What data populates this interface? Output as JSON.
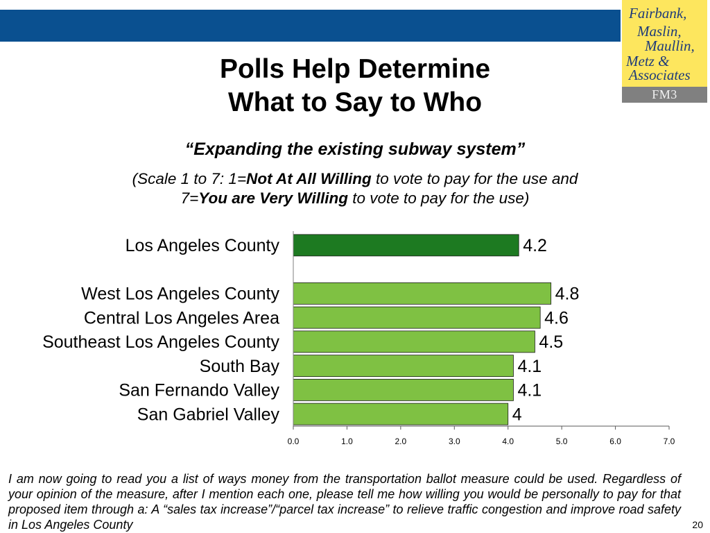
{
  "header": {
    "band_color": "#0A5090"
  },
  "logo": {
    "lines": [
      "Fairbank,",
      "Maslin,",
      "Maullin,",
      "Metz &",
      "Associates"
    ],
    "abbr": "FM3",
    "bg_color": "#FDE65E",
    "abbr_bg_color": "#808080",
    "text_color": "#1F3B7A"
  },
  "title": {
    "line1": "Polls Help Determine",
    "line2": "What to Say to Who"
  },
  "subtitle": "“Expanding the existing subway system”",
  "scale_note": {
    "line1_pre": "(Scale 1 to 7: 1=",
    "line1_bold": "Not At All Willing",
    "line1_post": " to vote to pay for the use and",
    "line2_pre": "7=",
    "line2_bold": "You are Very Willing",
    "line2_post": " to vote to pay for the use)"
  },
  "chart_data": {
    "type": "bar",
    "orientation": "horizontal",
    "categories": [
      "Los Angeles County",
      "West Los Angeles County",
      "Central Los Angeles Area",
      "Southeast Los Angeles County",
      "South Bay",
      "San Fernando Valley",
      "San Gabriel Valley"
    ],
    "values": [
      4.2,
      4.8,
      4.6,
      4.5,
      4.1,
      4.1,
      4.0
    ],
    "data_labels": [
      "4.2",
      "4.8",
      "4.6",
      "4.5",
      "4.1",
      "4.1",
      "4"
    ],
    "colors": [
      "#1D7A21",
      "#7FC143",
      "#7FC143",
      "#7FC143",
      "#7FC143",
      "#7FC143",
      "#7FC143"
    ],
    "xlim": [
      0,
      7
    ],
    "xticks": [
      0,
      1,
      2,
      3,
      4,
      5,
      6,
      7
    ],
    "xtick_labels": [
      "0.0",
      "1.0",
      "2.0",
      "3.0",
      "4.0",
      "5.0",
      "6.0",
      "7.0"
    ],
    "grid": false
  },
  "footnote": "I am now going to read you a list of ways money from the transportation ballot measure could be used.  Regardless of your opinion of the measure, after I mention each one, please tell me how willing you would be personally to pay for that proposed item through a: A “sales tax increase”/“parcel tax increase” to relieve traffic congestion and improve road safety in Los Angeles County",
  "page_number": "20"
}
